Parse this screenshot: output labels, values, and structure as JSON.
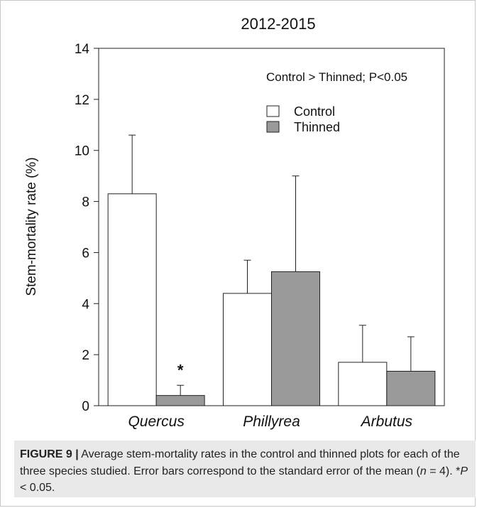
{
  "chart_data": {
    "type": "bar",
    "title": "2012-2015",
    "ylabel": "Stem-mortality rate (%)",
    "xlabel": "",
    "ylim": [
      0,
      14
    ],
    "yticks": [
      "0",
      "2",
      "4",
      "6",
      "8",
      "10",
      "12",
      "14"
    ],
    "categories": [
      "Quercus",
      "Phillyrea",
      "Arbutus"
    ],
    "series": [
      {
        "name": "Control",
        "values": [
          8.3,
          4.4,
          1.7
        ],
        "errors": [
          2.3,
          1.3,
          1.45
        ],
        "color": "#ffffff"
      },
      {
        "name": "Thinned",
        "values": [
          0.4,
          5.25,
          1.35
        ],
        "errors": [
          0.4,
          3.75,
          1.35
        ],
        "color": "#9a9a9a"
      }
    ],
    "annotation": "Control > Thinned; P<0.05",
    "significance_marker": {
      "label": "*",
      "category": "Quercus",
      "series": "Thinned"
    },
    "legend_position": "upper-right",
    "grid": false
  },
  "caption": {
    "label": "FIGURE 9 |",
    "text_1": " Average stem-mortality rates in the control and thinned plots for each of the three species studied. Error bars correspond to the standard error of the mean (",
    "n_var": "n",
    "n_eq": " = 4). *",
    "p_var": "P",
    "p_rest": " < 0.05."
  }
}
